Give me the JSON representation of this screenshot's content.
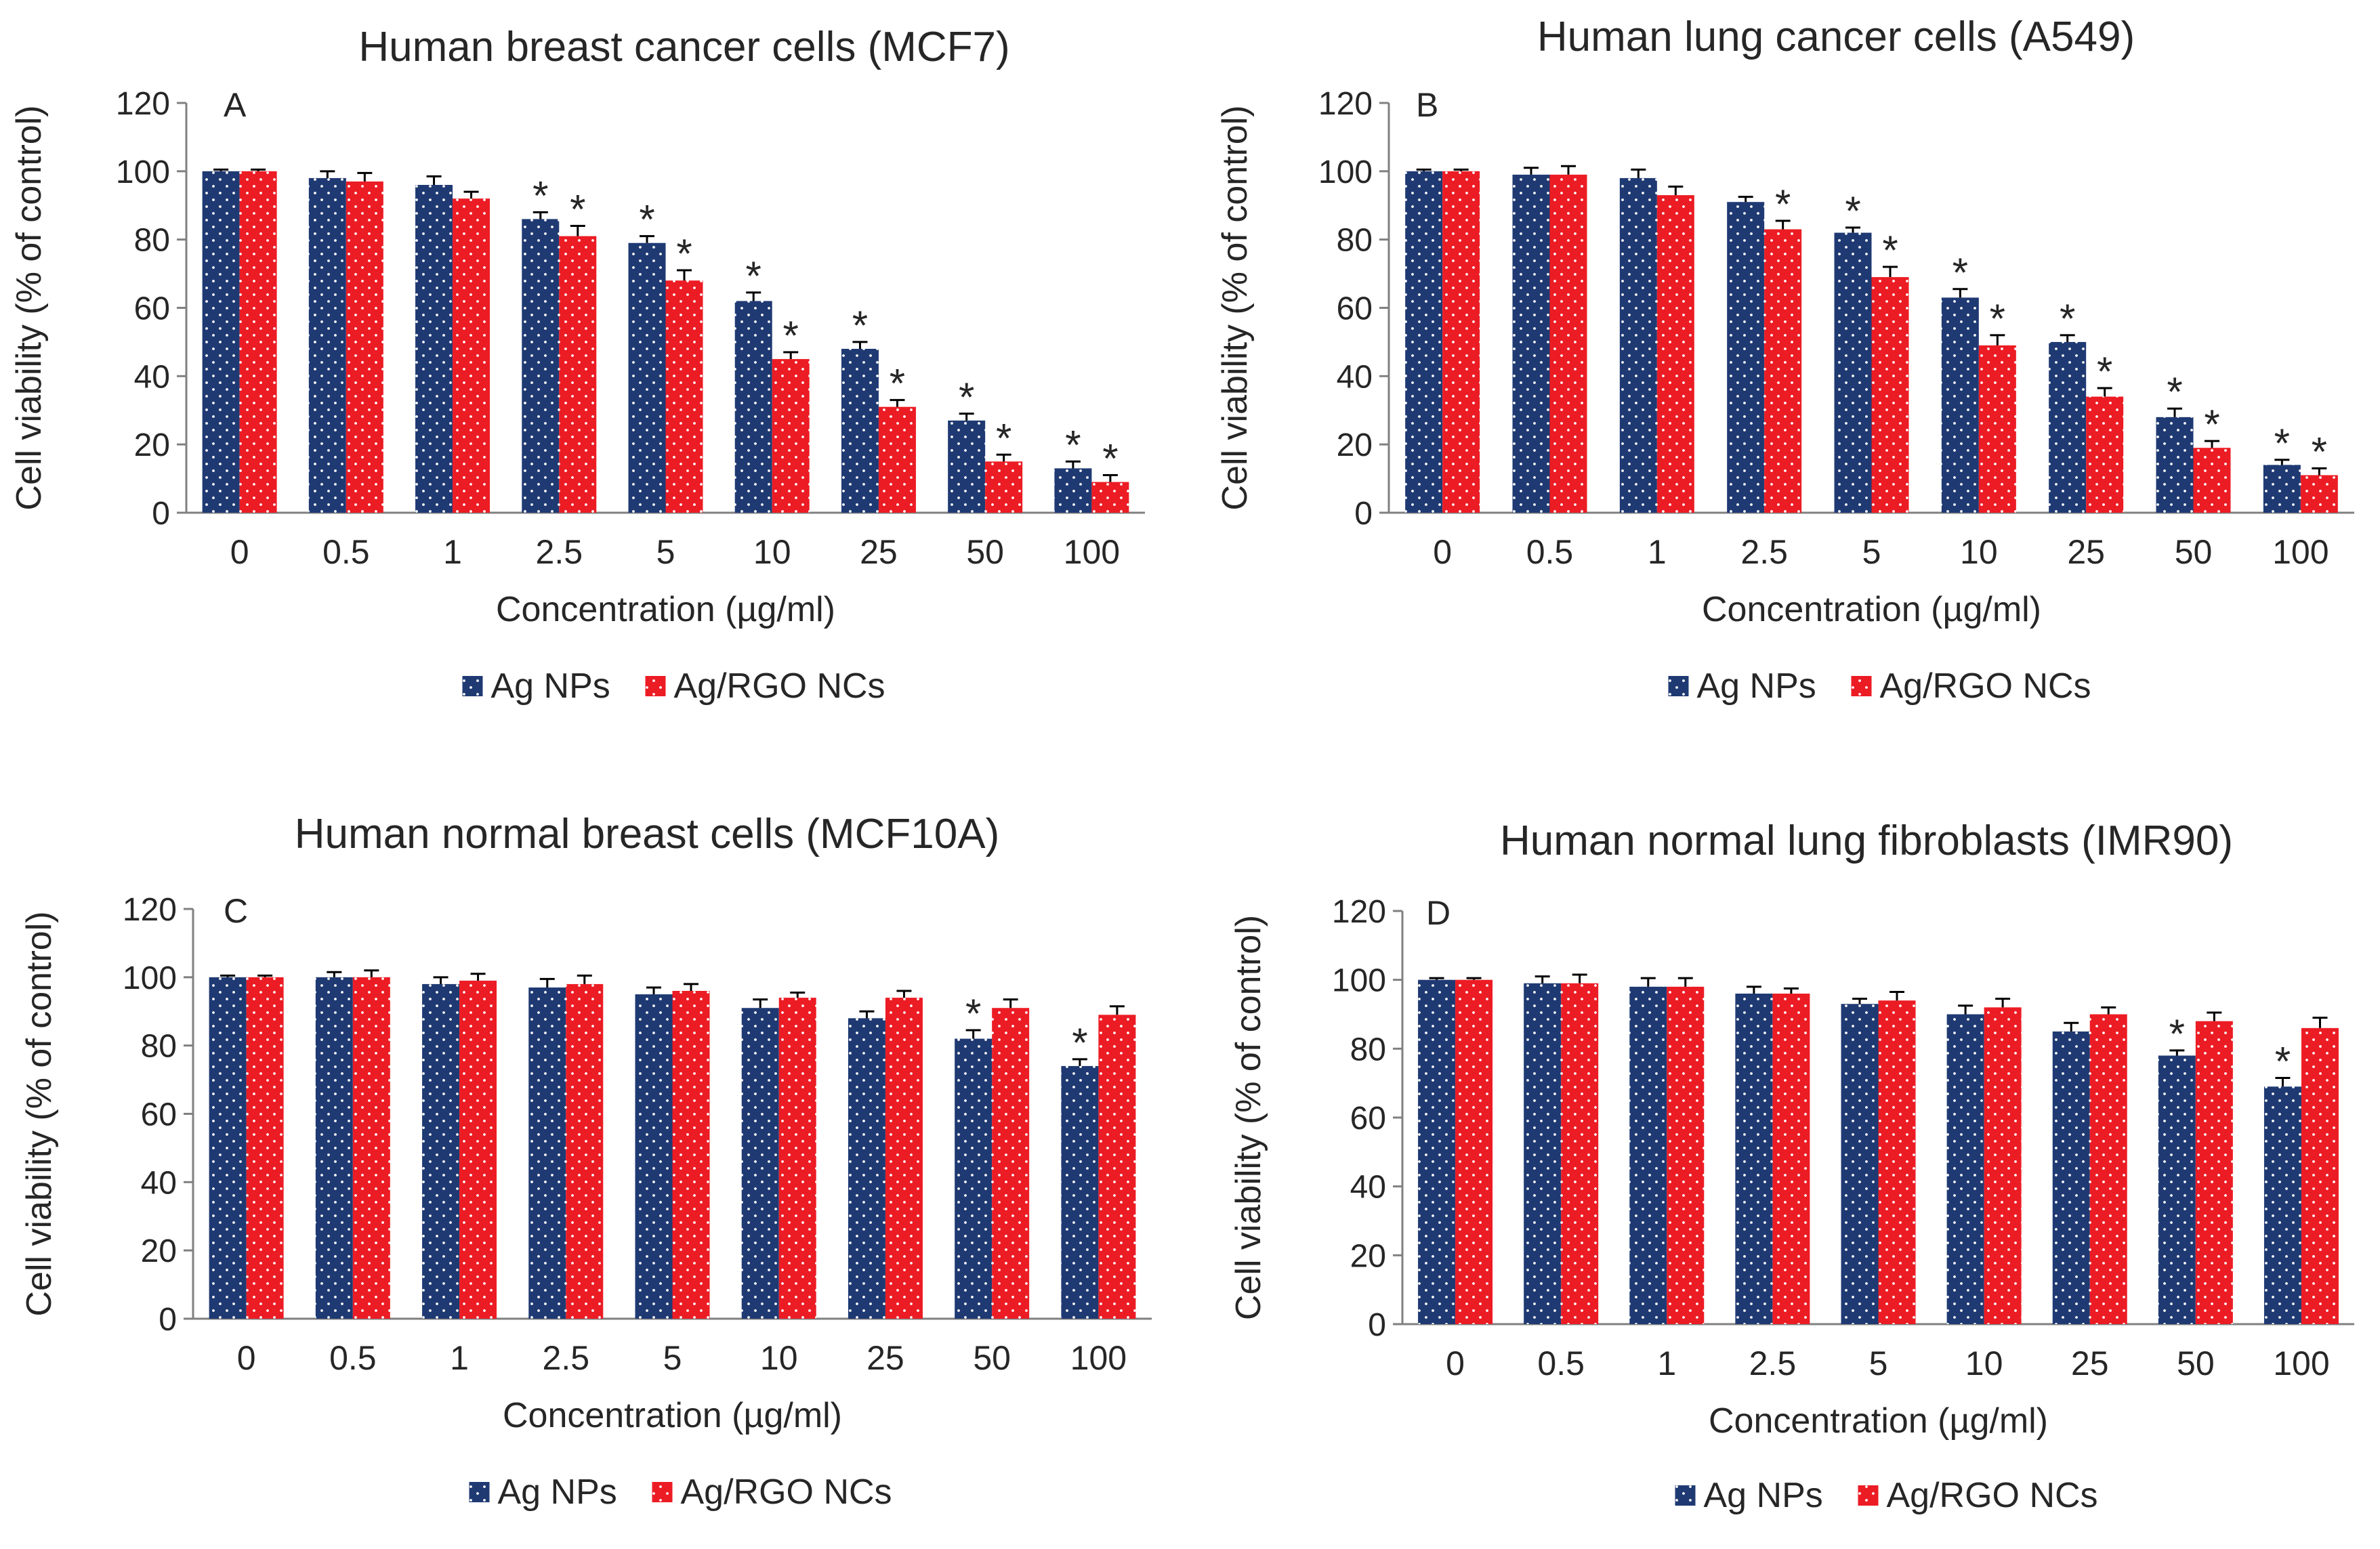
{
  "colors": {
    "ag_nps": "#1f3a73",
    "ag_rgo": "#ec1c24",
    "text": "#262626",
    "axis": "#808080",
    "dot": "#ffffff"
  },
  "chart_data": [
    {
      "type": "bar",
      "panel": "A",
      "title": "Human breast cancer cells (MCF7)",
      "xlabel": "Concentration (µg/ml)",
      "ylabel": "Cell viability (% of control)",
      "ylim": [
        0,
        120
      ],
      "yticks": [
        0,
        20,
        40,
        60,
        80,
        100,
        120
      ],
      "categories": [
        "0",
        "0.5",
        "1",
        "2.5",
        "5",
        "10",
        "25",
        "50",
        "100"
      ],
      "series": [
        {
          "name": "Ag NPs",
          "values": [
            100,
            98,
            96,
            86,
            79,
            62,
            48,
            27,
            13
          ],
          "errors": [
            0.5,
            2,
            2.5,
            2,
            2,
            2.5,
            2,
            2,
            2
          ],
          "significant": [
            false,
            false,
            false,
            true,
            true,
            true,
            true,
            true,
            true
          ]
        },
        {
          "name": "Ag/RGO NCs",
          "values": [
            100,
            97,
            92,
            81,
            68,
            45,
            31,
            15,
            9
          ],
          "errors": [
            0.5,
            2.5,
            2,
            3,
            3,
            2,
            2,
            2,
            2
          ],
          "significant": [
            false,
            false,
            false,
            true,
            true,
            true,
            true,
            true,
            true
          ]
        }
      ],
      "star_label": "*"
    },
    {
      "type": "bar",
      "panel": "B",
      "title": "Human lung cancer cells (A549)",
      "xlabel": "Concentration (µg/ml)",
      "ylabel": "Cell viability (% of control)",
      "ylim": [
        0,
        120
      ],
      "yticks": [
        0,
        20,
        40,
        60,
        80,
        100,
        120
      ],
      "categories": [
        "0",
        "0.5",
        "1",
        "2.5",
        "5",
        "10",
        "25",
        "50",
        "100"
      ],
      "series": [
        {
          "name": "Ag NPs",
          "values": [
            100,
            99,
            98,
            91,
            82,
            63,
            50,
            28,
            14
          ],
          "errors": [
            0.5,
            2,
            2.5,
            1.5,
            1.5,
            2.5,
            2,
            2.5,
            1.5
          ],
          "significant": [
            false,
            false,
            false,
            false,
            true,
            true,
            true,
            true,
            true
          ]
        },
        {
          "name": "Ag/RGO NCs",
          "values": [
            100,
            99,
            93,
            83,
            69,
            49,
            34,
            19,
            11
          ],
          "errors": [
            0.5,
            2.5,
            2.5,
            2.5,
            3,
            3,
            2.5,
            2,
            2
          ],
          "significant": [
            false,
            false,
            false,
            true,
            true,
            true,
            true,
            true,
            true
          ]
        }
      ],
      "star_label": "*"
    },
    {
      "type": "bar",
      "panel": "C",
      "title": "Human normal breast cells (MCF10A)",
      "xlabel": "Concentration (µg/ml)",
      "ylabel": "Cell viability (% of control)",
      "ylim": [
        0,
        120
      ],
      "yticks": [
        0,
        20,
        40,
        60,
        80,
        100,
        120
      ],
      "categories": [
        "0",
        "0.5",
        "1",
        "2.5",
        "5",
        "10",
        "25",
        "50",
        "100"
      ],
      "series": [
        {
          "name": "Ag NPs",
          "values": [
            100,
            100,
            98,
            97,
            95,
            91,
            88,
            82,
            74
          ],
          "errors": [
            0.5,
            1.5,
            2,
            2.5,
            2,
            2.5,
            2,
            2.5,
            2
          ],
          "significant": [
            false,
            false,
            false,
            false,
            false,
            false,
            false,
            true,
            true
          ]
        },
        {
          "name": "Ag/RGO NCs",
          "values": [
            100,
            100,
            99,
            98,
            96,
            94,
            94,
            91,
            89
          ],
          "errors": [
            0.5,
            2,
            2,
            2.5,
            2,
            1.5,
            2,
            2.5,
            2.5
          ],
          "significant": [
            false,
            false,
            false,
            false,
            false,
            false,
            false,
            false,
            false
          ]
        }
      ],
      "star_label": "*"
    },
    {
      "type": "bar",
      "panel": "D",
      "title": "Human normal lung fibroblasts (IMR90)",
      "xlabel": "Concentration (µg/ml)",
      "ylabel": "Cell viability (% of control)",
      "ylim": [
        0,
        120
      ],
      "yticks": [
        0,
        20,
        40,
        60,
        80,
        100,
        120
      ],
      "categories": [
        "0",
        "0.5",
        "1",
        "2.5",
        "5",
        "10",
        "25",
        "50",
        "100"
      ],
      "series": [
        {
          "name": "Ag NPs",
          "values": [
            100,
            99,
            98,
            96,
            93,
            90,
            85,
            78,
            69
          ],
          "errors": [
            0.5,
            2,
            2.5,
            2,
            1.5,
            2.5,
            2.5,
            1.5,
            2.5
          ],
          "significant": [
            false,
            false,
            false,
            false,
            false,
            false,
            false,
            true,
            true
          ]
        },
        {
          "name": "Ag/RGO NCs",
          "values": [
            100,
            99,
            98,
            96,
            94,
            92,
            90,
            88,
            86
          ],
          "errors": [
            0.5,
            2.5,
            2.5,
            1.5,
            2.5,
            2.5,
            2,
            2.5,
            3
          ],
          "significant": [
            false,
            false,
            false,
            false,
            false,
            false,
            false,
            false,
            false
          ]
        }
      ],
      "star_label": "*"
    }
  ]
}
